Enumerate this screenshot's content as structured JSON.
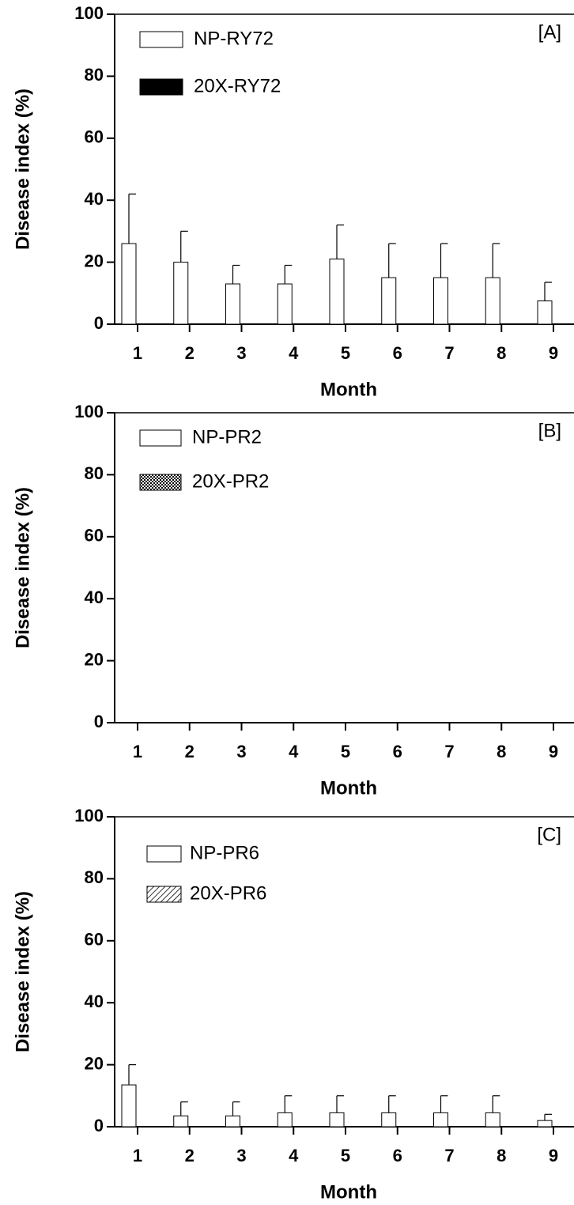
{
  "chart_data": [
    {
      "type": "bar",
      "panel_label": "[A]",
      "xlabel": "Month",
      "ylabel": "Disease index (%)",
      "categories": [
        "1",
        "2",
        "3",
        "4",
        "5",
        "6",
        "7",
        "8",
        "9"
      ],
      "series": [
        {
          "name": "NP-RY72",
          "color": "#ffffff",
          "fill": "solid",
          "values": [
            26,
            20,
            13,
            13,
            21,
            15,
            15,
            15,
            7.5
          ],
          "errors": [
            16,
            10,
            6,
            6,
            11,
            11,
            11,
            11,
            6
          ]
        },
        {
          "name": "20X-RY72",
          "color": "#000000",
          "fill": "solid",
          "values": [
            0,
            0,
            0,
            0,
            0,
            0,
            0,
            0,
            0
          ]
        }
      ],
      "ylim": [
        0,
        100
      ],
      "yticks": [
        0,
        20,
        40,
        60,
        80,
        100
      ],
      "legend": "upper left"
    },
    {
      "type": "bar",
      "panel_label": "[B]",
      "xlabel": "Month",
      "ylabel": "Disease index (%)",
      "categories": [
        "1",
        "2",
        "3",
        "4",
        "5",
        "6",
        "7",
        "8",
        "9"
      ],
      "series": [
        {
          "name": "NP-PR2",
          "color": "#ffffff",
          "fill": "solid",
          "values": [
            0,
            0,
            0,
            0,
            0,
            0,
            0,
            0,
            0
          ]
        },
        {
          "name": "20X-PR2",
          "color": "#000000",
          "fill": "checker",
          "values": [
            0,
            0,
            0,
            0,
            0,
            0,
            0,
            0,
            0
          ]
        }
      ],
      "ylim": [
        0,
        100
      ],
      "yticks": [
        0,
        20,
        40,
        60,
        80,
        100
      ],
      "legend": "upper left"
    },
    {
      "type": "bar",
      "panel_label": "[C]",
      "xlabel": "Month",
      "ylabel": "Disease index (%)",
      "categories": [
        "1",
        "2",
        "3",
        "4",
        "5",
        "6",
        "7",
        "8",
        "9"
      ],
      "series": [
        {
          "name": "NP-PR6",
          "color": "#ffffff",
          "fill": "solid",
          "values": [
            13.5,
            3.5,
            3.5,
            4.5,
            4.5,
            4.5,
            4.5,
            4.5,
            2
          ],
          "errors": [
            6.5,
            4.5,
            4.5,
            5.5,
            5.5,
            5.5,
            5.5,
            5.5,
            2
          ]
        },
        {
          "name": "20X-PR6",
          "color": "#000000",
          "fill": "hatch",
          "values": [
            0,
            0,
            0,
            0,
            0,
            0,
            0,
            0,
            0
          ]
        }
      ],
      "ylim": [
        0,
        100
      ],
      "yticks": [
        0,
        20,
        40,
        60,
        80,
        100
      ],
      "legend": "upper left"
    }
  ]
}
